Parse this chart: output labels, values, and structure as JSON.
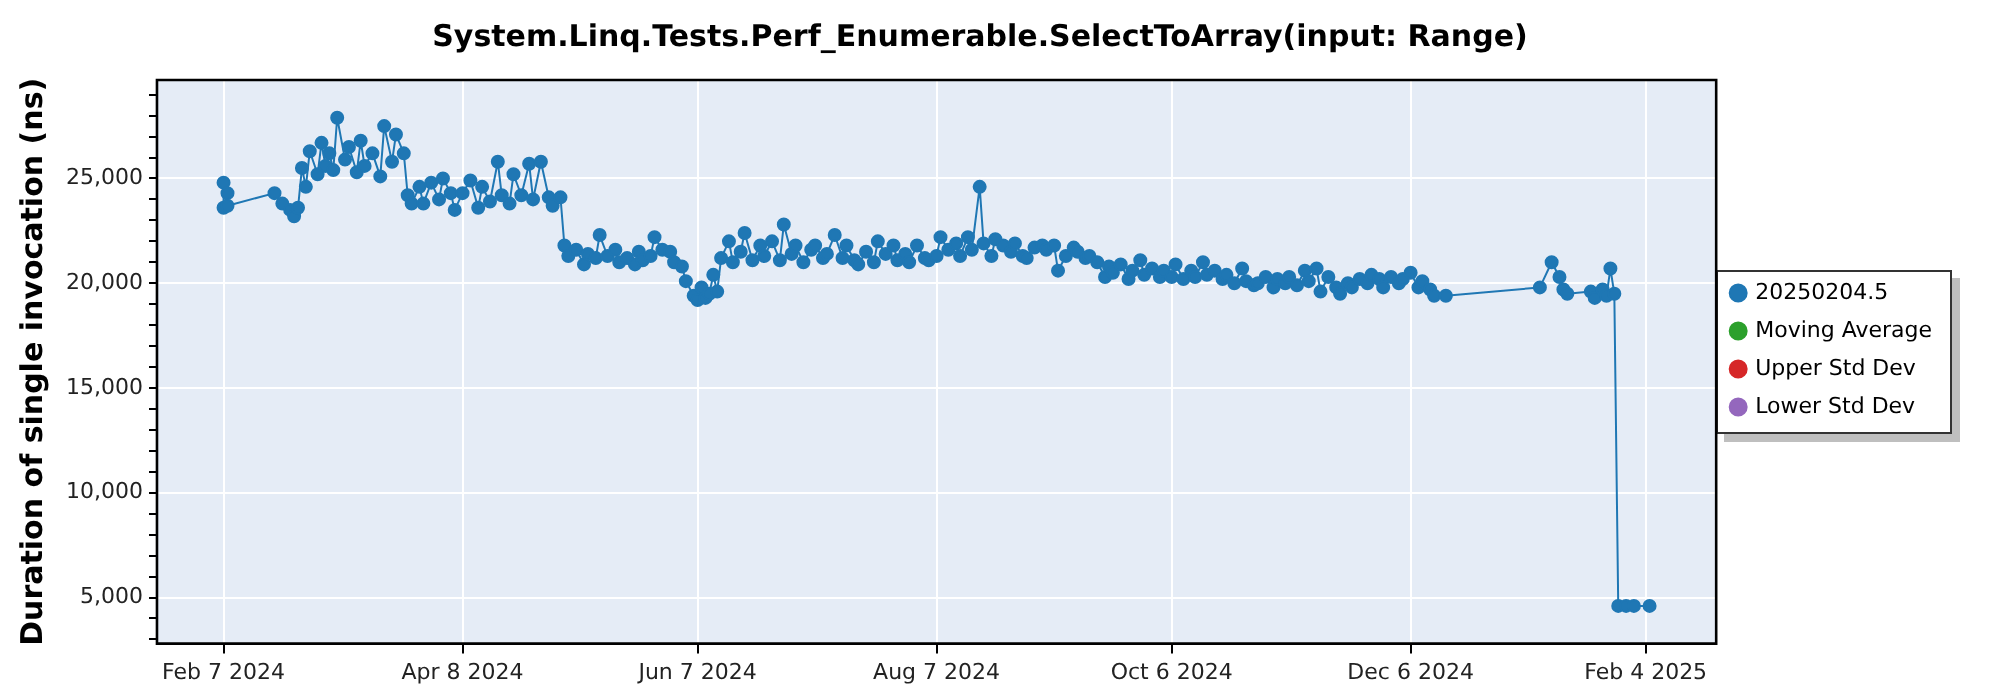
{
  "chart_data": {
    "type": "line",
    "title": "System.Linq.Tests.Perf_Enumerable.SelectToArray(input: Range)",
    "ylabel": "Duration of single invocation (ns)",
    "xlim": [
      "2024-01-21",
      "2025-02-22"
    ],
    "xticks": [
      {
        "value": "2024-02-07",
        "label": "Feb 7 2024"
      },
      {
        "value": "2024-04-08",
        "label": "Apr 8 2024"
      },
      {
        "value": "2024-06-07",
        "label": "Jun 7 2024"
      },
      {
        "value": "2024-08-07",
        "label": "Aug 7 2024"
      },
      {
        "value": "2024-10-06",
        "label": "Oct 6 2024"
      },
      {
        "value": "2024-12-06",
        "label": "Dec 6 2024"
      },
      {
        "value": "2025-02-04",
        "label": "Feb 4 2025"
      }
    ],
    "ylim": [
      2800,
      29700
    ],
    "yticks": [
      {
        "value": 3000,
        "label": null
      },
      {
        "value": 4000,
        "label": null
      },
      {
        "value": 5000,
        "label": "5,000"
      },
      {
        "value": 6000,
        "label": null
      },
      {
        "value": 7000,
        "label": null
      },
      {
        "value": 8000,
        "label": null
      },
      {
        "value": 9000,
        "label": null
      },
      {
        "value": 10000,
        "label": "10,000"
      },
      {
        "value": 11000,
        "label": null
      },
      {
        "value": 12000,
        "label": null
      },
      {
        "value": 13000,
        "label": null
      },
      {
        "value": 14000,
        "label": null
      },
      {
        "value": 15000,
        "label": "15,000"
      },
      {
        "value": 16000,
        "label": null
      },
      {
        "value": 17000,
        "label": null
      },
      {
        "value": 18000,
        "label": null
      },
      {
        "value": 19000,
        "label": null
      },
      {
        "value": 20000,
        "label": "20,000"
      },
      {
        "value": 21000,
        "label": null
      },
      {
        "value": 22000,
        "label": null
      },
      {
        "value": 23000,
        "label": null
      },
      {
        "value": 24000,
        "label": null
      },
      {
        "value": 25000,
        "label": "25,000"
      },
      {
        "value": 26000,
        "label": null
      },
      {
        "value": 27000,
        "label": null
      },
      {
        "value": 28000,
        "label": null
      },
      {
        "value": 29000,
        "label": null
      }
    ],
    "grid": true,
    "legend": "right",
    "marker": "circle",
    "line_style": "solid",
    "series": [
      {
        "name": "20250204.5",
        "color": "#1f77b4",
        "x": [
          "2024-02-07",
          "2024-02-07",
          "2024-02-08",
          "2024-02-08",
          "2024-02-20",
          "2024-02-22",
          "2024-02-24",
          "2024-02-25",
          "2024-02-26",
          "2024-02-27",
          "2024-02-28",
          "2024-02-29",
          "2024-03-02",
          "2024-03-03",
          "2024-03-04",
          "2024-03-05",
          "2024-03-06",
          "2024-03-07",
          "2024-03-09",
          "2024-03-10",
          "2024-03-12",
          "2024-03-13",
          "2024-03-14",
          "2024-03-16",
          "2024-03-18",
          "2024-03-19",
          "2024-03-21",
          "2024-03-22",
          "2024-03-24",
          "2024-03-25",
          "2024-03-26",
          "2024-03-28",
          "2024-03-29",
          "2024-03-31",
          "2024-04-02",
          "2024-04-03",
          "2024-04-05",
          "2024-04-06",
          "2024-04-08",
          "2024-04-10",
          "2024-04-12",
          "2024-04-13",
          "2024-04-15",
          "2024-04-17",
          "2024-04-18",
          "2024-04-20",
          "2024-04-21",
          "2024-04-23",
          "2024-04-25",
          "2024-04-26",
          "2024-04-28",
          "2024-04-30",
          "2024-05-01",
          "2024-05-03",
          "2024-05-04",
          "2024-05-05",
          "2024-05-07",
          "2024-05-09",
          "2024-05-10",
          "2024-05-12",
          "2024-05-13",
          "2024-05-15",
          "2024-05-17",
          "2024-05-18",
          "2024-05-20",
          "2024-05-22",
          "2024-05-23",
          "2024-05-24",
          "2024-05-26",
          "2024-05-27",
          "2024-05-29",
          "2024-05-31",
          "2024-06-01",
          "2024-06-03",
          "2024-06-04",
          "2024-06-06",
          "2024-06-07",
          "2024-06-08",
          "2024-06-09",
          "2024-06-10",
          "2024-06-11",
          "2024-06-12",
          "2024-06-13",
          "2024-06-15",
          "2024-06-16",
          "2024-06-18",
          "2024-06-19",
          "2024-06-21",
          "2024-06-23",
          "2024-06-24",
          "2024-06-26",
          "2024-06-28",
          "2024-06-29",
          "2024-07-01",
          "2024-07-02",
          "2024-07-04",
          "2024-07-06",
          "2024-07-07",
          "2024-07-09",
          "2024-07-10",
          "2024-07-12",
          "2024-07-14",
          "2024-07-15",
          "2024-07-17",
          "2024-07-18",
          "2024-07-20",
          "2024-07-22",
          "2024-07-23",
          "2024-07-25",
          "2024-07-27",
          "2024-07-28",
          "2024-07-30",
          "2024-07-31",
          "2024-08-02",
          "2024-08-04",
          "2024-08-05",
          "2024-08-07",
          "2024-08-08",
          "2024-08-10",
          "2024-08-12",
          "2024-08-13",
          "2024-08-15",
          "2024-08-16",
          "2024-08-18",
          "2024-08-19",
          "2024-08-21",
          "2024-08-22",
          "2024-08-24",
          "2024-08-26",
          "2024-08-27",
          "2024-08-29",
          "2024-08-30",
          "2024-09-01",
          "2024-09-03",
          "2024-09-04",
          "2024-09-06",
          "2024-09-07",
          "2024-09-09",
          "2024-09-11",
          "2024-09-12",
          "2024-09-14",
          "2024-09-15",
          "2024-09-17",
          "2024-09-19",
          "2024-09-20",
          "2024-09-21",
          "2024-09-23",
          "2024-09-25",
          "2024-09-26",
          "2024-09-28",
          "2024-09-29",
          "2024-10-01",
          "2024-10-03",
          "2024-10-04",
          "2024-10-06",
          "2024-10-07",
          "2024-10-09",
          "2024-10-11",
          "2024-10-12",
          "2024-10-14",
          "2024-10-15",
          "2024-10-17",
          "2024-10-19",
          "2024-10-20",
          "2024-10-22",
          "2024-10-24",
          "2024-10-25",
          "2024-10-27",
          "2024-10-28",
          "2024-10-30",
          "2024-11-01",
          "2024-11-02",
          "2024-11-04",
          "2024-11-05",
          "2024-11-07",
          "2024-11-09",
          "2024-11-10",
          "2024-11-12",
          "2024-11-13",
          "2024-11-15",
          "2024-11-17",
          "2024-11-18",
          "2024-11-20",
          "2024-11-21",
          "2024-11-23",
          "2024-11-25",
          "2024-11-26",
          "2024-11-28",
          "2024-11-29",
          "2024-12-01",
          "2024-12-03",
          "2024-12-04",
          "2024-12-06",
          "2024-12-08",
          "2024-12-09",
          "2024-12-11",
          "2024-12-12",
          "2024-12-15",
          "2025-01-08",
          "2025-01-11",
          "2025-01-13",
          "2025-01-14",
          "2025-01-15",
          "2025-01-21",
          "2025-01-22",
          "2025-01-24",
          "2025-01-25",
          "2025-01-26",
          "2025-01-27",
          "2025-01-28",
          "2025-01-30",
          "2025-02-01",
          "2025-02-05"
        ],
        "values": [
          24800,
          23600,
          24300,
          23700,
          24300,
          23800,
          23500,
          23200,
          23600,
          25500,
          24600,
          26300,
          25200,
          26700,
          25600,
          26200,
          25400,
          27900,
          25900,
          26500,
          25300,
          26800,
          25600,
          26200,
          25100,
          27500,
          25800,
          27100,
          26200,
          24200,
          23800,
          24600,
          23800,
          24800,
          24000,
          25000,
          24300,
          23500,
          24300,
          24900,
          23600,
          24600,
          23900,
          25800,
          24200,
          23800,
          25200,
          24200,
          25700,
          24000,
          25800,
          24100,
          23700,
          24100,
          21800,
          21300,
          21600,
          20900,
          21400,
          21200,
          22300,
          21300,
          21600,
          21000,
          21200,
          20900,
          21500,
          21100,
          21300,
          22200,
          21600,
          21500,
          21000,
          20800,
          20100,
          19400,
          19200,
          19800,
          19300,
          19500,
          20400,
          19600,
          21200,
          22000,
          21000,
          21500,
          22400,
          21100,
          21800,
          21300,
          22000,
          21100,
          22800,
          21400,
          21800,
          21000,
          21600,
          21800,
          21200,
          21400,
          22300,
          21200,
          21800,
          21100,
          20900,
          21500,
          21000,
          22000,
          21400,
          21800,
          21100,
          21400,
          21000,
          21800,
          21200,
          21100,
          21300,
          22200,
          21600,
          21900,
          21300,
          22200,
          21600,
          24600,
          21900,
          21300,
          22100,
          21800,
          21500,
          21900,
          21300,
          21200,
          21700,
          21800,
          21600,
          21800,
          20600,
          21300,
          21700,
          21500,
          21200,
          21300,
          21000,
          20300,
          20800,
          20500,
          20900,
          20200,
          20600,
          21100,
          20400,
          20700,
          20300,
          20600,
          20300,
          20900,
          20200,
          20600,
          20300,
          21000,
          20400,
          20600,
          20200,
          20400,
          20000,
          20700,
          20100,
          19900,
          20000,
          20300,
          19800,
          20200,
          20000,
          20300,
          19900,
          20600,
          20100,
          20700,
          19600,
          20300,
          19800,
          19500,
          20000,
          19800,
          20200,
          20000,
          20400,
          20200,
          19800,
          20300,
          20000,
          20200,
          20500,
          19800,
          20100,
          19700,
          19400,
          19400,
          19800,
          21000,
          20300,
          19700,
          19500,
          19600,
          19300,
          19700,
          19400,
          20700,
          19500,
          4600,
          4600,
          4600,
          4600
        ]
      },
      {
        "name": "Moving Average",
        "color": "#2ca02c"
      },
      {
        "name": "Upper Std Dev",
        "color": "#d62728"
      },
      {
        "name": "Lower Std Dev",
        "color": "#9467bd"
      }
    ]
  }
}
